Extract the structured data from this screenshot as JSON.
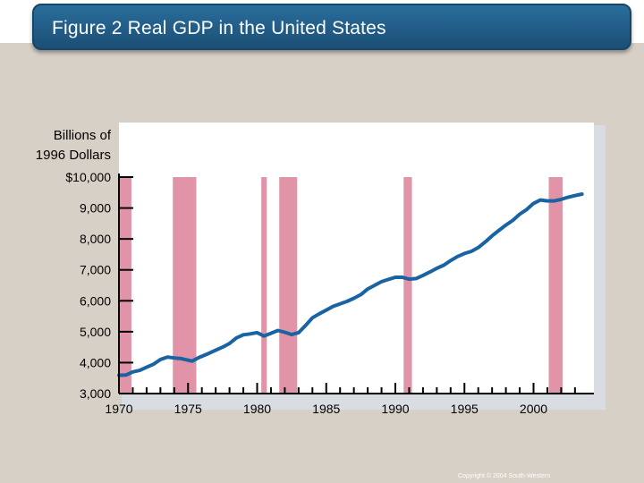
{
  "header": {
    "title": "Figure 2 Real GDP in the United States"
  },
  "footer": {
    "copyright": "Copyright © 2004 South-Western"
  },
  "colors": {
    "line": "#1a63a3",
    "recession": "#e193a8",
    "plot_bg": "#ffffff",
    "title_bar": "#22618e"
  },
  "chart_data": {
    "type": "line",
    "title": "",
    "ylabel": [
      "Billions of",
      "1996 Dollars"
    ],
    "xlabel": "",
    "xlim": [
      1970,
      2003.5
    ],
    "ylim": [
      3000,
      10000
    ],
    "y_ticks": [
      3000,
      4000,
      5000,
      6000,
      7000,
      8000,
      9000,
      10000
    ],
    "y_tick_labels": [
      "3,000",
      "4,000",
      "5,000",
      "6,000",
      "7,000",
      "8,000",
      "9,000",
      "$10,000"
    ],
    "x_major_ticks": [
      1970,
      1975,
      1980,
      1985,
      1990,
      1995,
      2000
    ],
    "x_tick_labels": [
      "1970",
      "1975",
      "1980",
      "1985",
      "1990",
      "1995",
      "2000"
    ],
    "grid": false,
    "recessions": [
      {
        "start": 1970.0,
        "end": 1970.9
      },
      {
        "start": 1973.9,
        "end": 1975.6
      },
      {
        "start": 1980.3,
        "end": 1980.7
      },
      {
        "start": 1981.6,
        "end": 1982.9
      },
      {
        "start": 1990.6,
        "end": 1991.2
      },
      {
        "start": 2001.1,
        "end": 2002.1
      }
    ],
    "series": [
      {
        "values": [
          [
            1970.0,
            3590
          ],
          [
            1970.5,
            3600
          ],
          [
            1971.0,
            3700
          ],
          [
            1971.5,
            3750
          ],
          [
            1972.0,
            3850
          ],
          [
            1972.5,
            3950
          ],
          [
            1973.0,
            4100
          ],
          [
            1973.5,
            4180
          ],
          [
            1974.0,
            4150
          ],
          [
            1974.5,
            4130
          ],
          [
            1975.0,
            4080
          ],
          [
            1975.3,
            4050
          ],
          [
            1975.8,
            4170
          ],
          [
            1976.5,
            4300
          ],
          [
            1977.0,
            4400
          ],
          [
            1977.5,
            4500
          ],
          [
            1978.0,
            4620
          ],
          [
            1978.5,
            4800
          ],
          [
            1979.0,
            4900
          ],
          [
            1979.5,
            4930
          ],
          [
            1980.0,
            4970
          ],
          [
            1980.5,
            4860
          ],
          [
            1981.0,
            4950
          ],
          [
            1981.5,
            5040
          ],
          [
            1982.0,
            4980
          ],
          [
            1982.5,
            4910
          ],
          [
            1983.0,
            4970
          ],
          [
            1983.5,
            5200
          ],
          [
            1984.0,
            5450
          ],
          [
            1984.5,
            5580
          ],
          [
            1985.0,
            5700
          ],
          [
            1985.5,
            5820
          ],
          [
            1986.0,
            5900
          ],
          [
            1986.5,
            5980
          ],
          [
            1987.0,
            6080
          ],
          [
            1987.5,
            6200
          ],
          [
            1988.0,
            6380
          ],
          [
            1988.5,
            6500
          ],
          [
            1989.0,
            6620
          ],
          [
            1989.5,
            6690
          ],
          [
            1990.0,
            6760
          ],
          [
            1990.5,
            6760
          ],
          [
            1991.0,
            6700
          ],
          [
            1991.5,
            6720
          ],
          [
            1992.0,
            6820
          ],
          [
            1992.5,
            6930
          ],
          [
            1993.0,
            7050
          ],
          [
            1993.5,
            7150
          ],
          [
            1994.0,
            7300
          ],
          [
            1994.5,
            7430
          ],
          [
            1995.0,
            7530
          ],
          [
            1995.5,
            7600
          ],
          [
            1996.0,
            7720
          ],
          [
            1996.5,
            7900
          ],
          [
            1997.0,
            8100
          ],
          [
            1997.5,
            8280
          ],
          [
            1998.0,
            8450
          ],
          [
            1998.5,
            8600
          ],
          [
            1999.0,
            8800
          ],
          [
            1999.5,
            8950
          ],
          [
            2000.0,
            9150
          ],
          [
            2000.5,
            9260
          ],
          [
            2001.0,
            9230
          ],
          [
            2001.5,
            9230
          ],
          [
            2002.0,
            9280
          ],
          [
            2002.5,
            9350
          ],
          [
            2003.0,
            9400
          ],
          [
            2003.5,
            9450
          ]
        ]
      }
    ]
  }
}
